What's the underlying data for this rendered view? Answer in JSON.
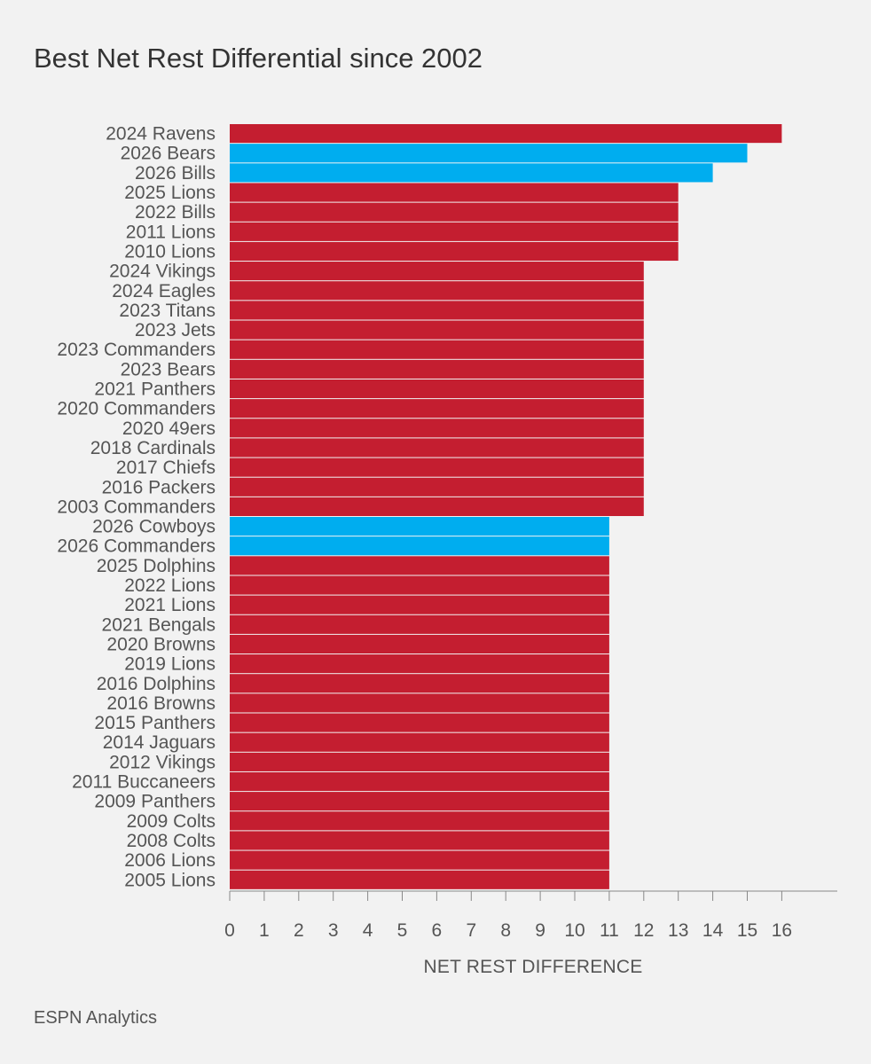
{
  "title": "Best Net Rest Differential since 2002",
  "source": "ESPN Analytics",
  "colors": {
    "default": "#c41e30",
    "highlight": "#00adef",
    "axis": "#888888",
    "background": "#f2f2f2"
  },
  "chart_data": {
    "type": "bar",
    "orientation": "horizontal",
    "title": "Best Net Rest Differential since 2002",
    "xlabel": "NET REST DIFFERENCE",
    "ylabel": "",
    "xlim": [
      0,
      17
    ],
    "xticks": [
      0,
      1,
      2,
      3,
      4,
      5,
      6,
      7,
      8,
      9,
      10,
      11,
      12,
      13,
      14,
      15,
      16
    ],
    "grid": false,
    "categories": [
      "2024 Ravens",
      "2026 Bears",
      "2026 Bills",
      "2025 Lions",
      "2022 Bills",
      "2011 Lions",
      "2010 Lions",
      "2024 Vikings",
      "2024 Eagles",
      "2023 Titans",
      "2023 Jets",
      "2023 Commanders",
      "2023 Bears",
      "2021 Panthers",
      "2020 Commanders",
      "2020 49ers",
      "2018 Cardinals",
      "2017 Chiefs",
      "2016 Packers",
      "2003 Commanders",
      "2026 Cowboys",
      "2026 Commanders",
      "2025 Dolphins",
      "2022 Lions",
      "2021 Lions",
      "2021 Bengals",
      "2020 Browns",
      "2019 Lions",
      "2016 Dolphins",
      "2016 Browns",
      "2015 Panthers",
      "2014 Jaguars",
      "2012 Vikings",
      "2011 Buccaneers",
      "2009 Panthers",
      "2009 Colts",
      "2008 Colts",
      "2006 Lions",
      "2005 Lions"
    ],
    "values": [
      16,
      15,
      14,
      13,
      13,
      13,
      13,
      12,
      12,
      12,
      12,
      12,
      12,
      12,
      12,
      12,
      12,
      12,
      12,
      12,
      11,
      11,
      11,
      11,
      11,
      11,
      11,
      11,
      11,
      11,
      11,
      11,
      11,
      11,
      11,
      11,
      11,
      11,
      11
    ],
    "highlighted": [
      "2026 Bears",
      "2026 Bills",
      "2026 Cowboys",
      "2026 Commanders"
    ]
  }
}
